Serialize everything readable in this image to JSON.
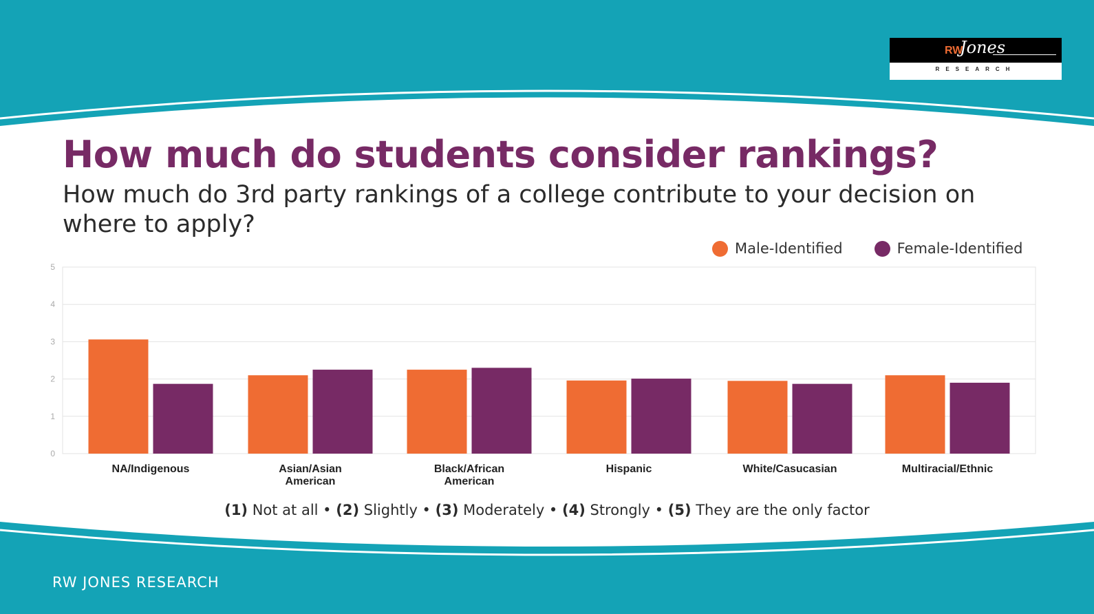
{
  "logo": {
    "rw": "RW",
    "script": "Jones",
    "sub": "RESEARCH"
  },
  "title": "How much do students consider rankings?",
  "subtitle": "How much do 3rd party rankings of a college contribute to your decision on where to apply?",
  "footnote": [
    {
      "num": "(1)",
      "label": "Not at all"
    },
    {
      "num": "(2)",
      "label": "Slightly"
    },
    {
      "num": "(3)",
      "label": "Moderately"
    },
    {
      "num": "(4)",
      "label": "Strongly"
    },
    {
      "num": "(5)",
      "label": "They are the only factor"
    }
  ],
  "brand": "RW JONES RESEARCH",
  "colors": {
    "teal": "#14a3b6",
    "male": "#ef6c33",
    "female": "#772a65",
    "title": "#772a65"
  },
  "chart_data": {
    "type": "bar",
    "categories": [
      [
        "NA/Indigenous"
      ],
      [
        "Asian/Asian",
        "American"
      ],
      [
        "Black/African",
        "American"
      ],
      [
        "Hispanic"
      ],
      [
        "White/Casucasian"
      ],
      [
        "Multiracial/Ethnic"
      ]
    ],
    "series": [
      {
        "name": "Male-Identified",
        "color": "#ef6c33",
        "values": [
          3.06,
          2.1,
          2.25,
          1.96,
          1.95,
          2.1
        ]
      },
      {
        "name": "Female-Identified",
        "color": "#772a65",
        "values": [
          1.87,
          2.25,
          2.3,
          2.01,
          1.87,
          1.9
        ]
      }
    ],
    "ylim": [
      0,
      5
    ],
    "yticks": [
      0,
      1,
      2,
      3,
      4,
      5
    ],
    "grid": true,
    "legend": "top-right"
  }
}
